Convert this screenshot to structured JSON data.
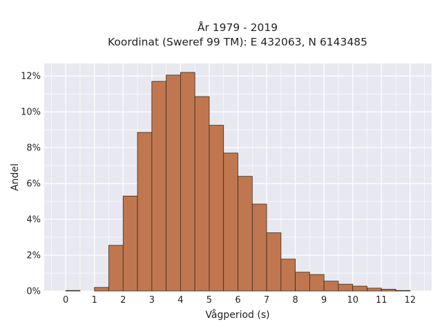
{
  "chart_data": {
    "type": "bar",
    "title": [
      "År 1979 - 2019",
      "Koordinat (Sweref 99 TM): E 432063, N 6143485"
    ],
    "xlabel": "Vågperiod (s)",
    "ylabel": "Andel",
    "xlim": [
      -0.75,
      12.75
    ],
    "ylim": [
      0,
      12.7
    ],
    "xticks": [
      0,
      1,
      2,
      3,
      4,
      5,
      6,
      7,
      8,
      9,
      10,
      11,
      12
    ],
    "yticks": [
      {
        "value": 0,
        "label": "0%"
      },
      {
        "value": 2,
        "label": "2%"
      },
      {
        "value": 4,
        "label": "4%"
      },
      {
        "value": 6,
        "label": "6%"
      },
      {
        "value": 8,
        "label": "8%"
      },
      {
        "value": 10,
        "label": "10%"
      },
      {
        "value": 12,
        "label": "12%"
      }
    ],
    "grid": true,
    "bar_color": "#c0774f",
    "bar_edge_color": "#3a2a20",
    "bin_width": 0.5,
    "bins": [
      {
        "x0": 0.0,
        "value": 0.03
      },
      {
        "x0": 1.0,
        "value": 0.2
      },
      {
        "x0": 1.5,
        "value": 2.55
      },
      {
        "x0": 2.0,
        "value": 5.3
      },
      {
        "x0": 2.5,
        "value": 8.85
      },
      {
        "x0": 3.0,
        "value": 11.7
      },
      {
        "x0": 3.5,
        "value": 12.05
      },
      {
        "x0": 4.0,
        "value": 12.2
      },
      {
        "x0": 4.5,
        "value": 10.85
      },
      {
        "x0": 5.0,
        "value": 9.25
      },
      {
        "x0": 5.5,
        "value": 7.7
      },
      {
        "x0": 6.0,
        "value": 6.4
      },
      {
        "x0": 6.5,
        "value": 4.85
      },
      {
        "x0": 7.0,
        "value": 3.25
      },
      {
        "x0": 7.5,
        "value": 1.78
      },
      {
        "x0": 8.0,
        "value": 1.05
      },
      {
        "x0": 8.5,
        "value": 0.92
      },
      {
        "x0": 9.0,
        "value": 0.55
      },
      {
        "x0": 9.5,
        "value": 0.38
      },
      {
        "x0": 10.0,
        "value": 0.27
      },
      {
        "x0": 10.5,
        "value": 0.16
      },
      {
        "x0": 11.0,
        "value": 0.1
      },
      {
        "x0": 11.5,
        "value": 0.03
      }
    ]
  }
}
